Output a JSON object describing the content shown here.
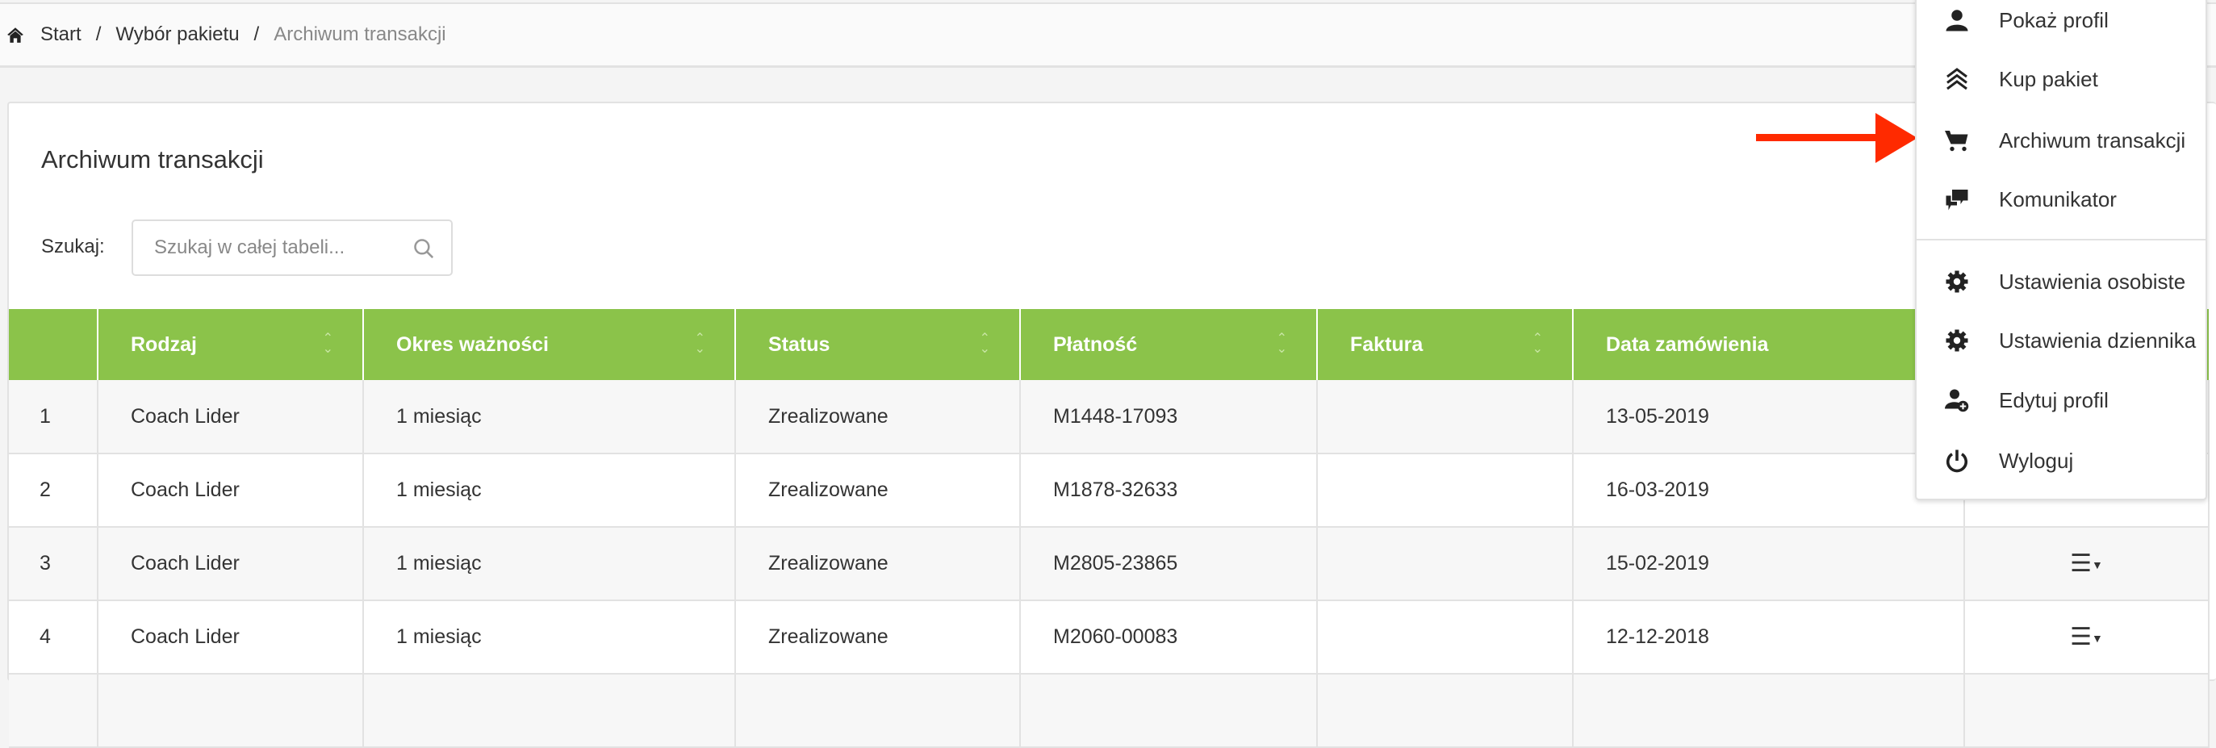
{
  "breadcrumb": {
    "items": [
      "Start",
      "Wybór pakietu"
    ],
    "current": "Archiwum transakcji",
    "separator": "/"
  },
  "page": {
    "title": "Archiwum transakcji",
    "search_label": "Szukaj:",
    "search_placeholder": "Szukaj w całej tabeli...",
    "header_color": "#8bc34a"
  },
  "table": {
    "columns": [
      "",
      "Rodzaj",
      "Okres ważności",
      "Status",
      "Płatność",
      "Faktura",
      "Data zamówienia",
      ""
    ],
    "rows": [
      {
        "no": "1",
        "type": "Coach Lider",
        "period": "1 miesiąc",
        "status": "Zrealizowane",
        "payment": "M1448-17093",
        "invoice": "",
        "date": "13-05-2019"
      },
      {
        "no": "2",
        "type": "Coach Lider",
        "period": "1 miesiąc",
        "status": "Zrealizowane",
        "payment": "M1878-32633",
        "invoice": "",
        "date": "16-03-2019"
      },
      {
        "no": "3",
        "type": "Coach Lider",
        "period": "1 miesiąc",
        "status": "Zrealizowane",
        "payment": "M2805-23865",
        "invoice": "",
        "date": "15-02-2019"
      },
      {
        "no": "4",
        "type": "Coach Lider",
        "period": "1 miesiąc",
        "status": "Zrealizowane",
        "payment": "M2060-00083",
        "invoice": "",
        "date": "12-12-2018"
      }
    ]
  },
  "menu": {
    "items": [
      {
        "label": "Pokaż profil",
        "icon": "user-icon"
      },
      {
        "label": "Kup pakiet",
        "icon": "chevrons-up-icon"
      },
      {
        "label": "Archiwum transakcji",
        "icon": "cart-icon"
      },
      {
        "label": "Komunikator",
        "icon": "chat-icon"
      },
      {
        "label": "Ustawienia osobiste",
        "icon": "gear-icon"
      },
      {
        "label": "Ustawienia dziennika",
        "icon": "gear-icon"
      },
      {
        "label": "Edytuj profil",
        "icon": "user-plus-icon"
      },
      {
        "label": "Wyloguj",
        "icon": "power-icon"
      }
    ]
  },
  "annotation": {
    "arrow_color": "#ff2a00"
  }
}
